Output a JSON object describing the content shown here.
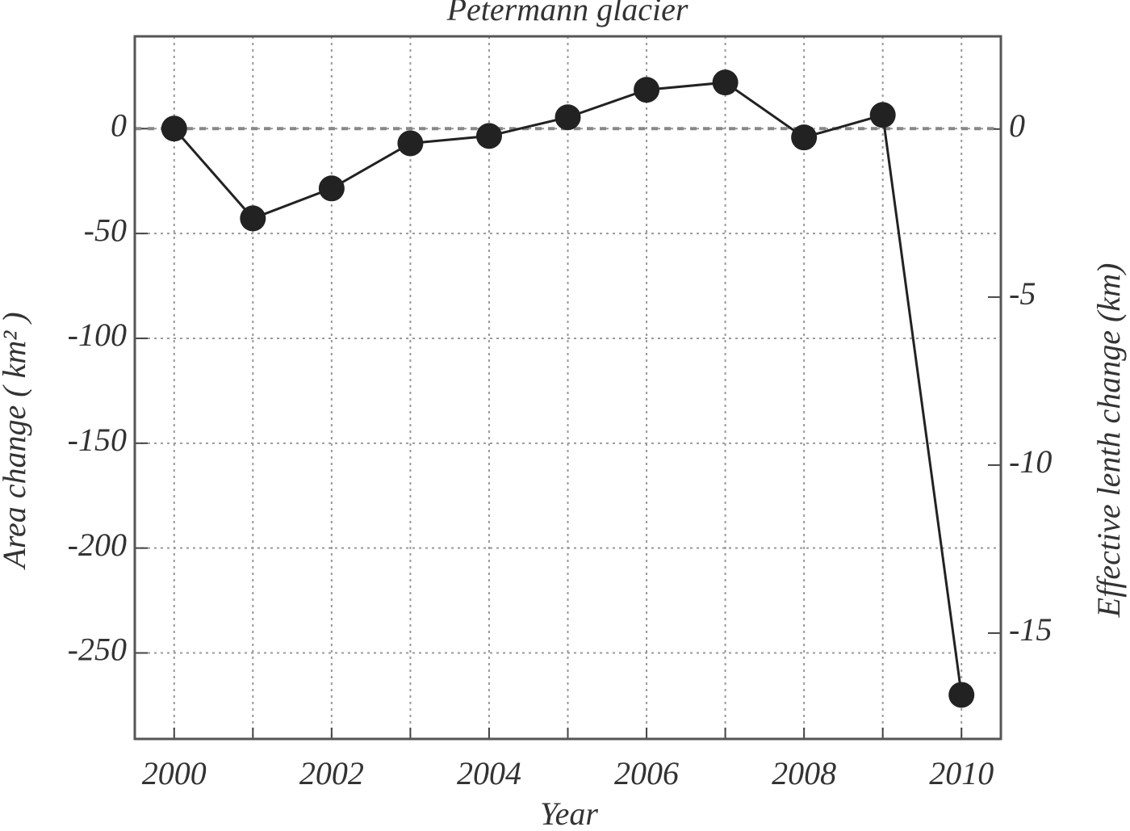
{
  "chart_data": {
    "type": "line",
    "title": "Petermann glacier",
    "x_label": "Year",
    "y_label": "Area change ( km² )",
    "y2_label": "Effective lenth change (km)",
    "x": [
      2000,
      2001,
      2002,
      2003,
      2004,
      2005,
      2006,
      2007,
      2008,
      2009,
      2010
    ],
    "series": [
      {
        "color": "#222222",
        "values": [
          0,
          -42.8,
          -28.5,
          -7,
          -3.5,
          5.4,
          18.5,
          22,
          -4.2,
          6.5,
          -270
        ]
      }
    ],
    "xlim": [
      1999.5,
      2010.5
    ],
    "xticks": [
      2000,
      2002,
      2004,
      2006,
      2008,
      2010
    ],
    "minor_xticks": [
      2001,
      2003,
      2005,
      2007,
      2009
    ],
    "ylim": [
      -291,
      44
    ],
    "yticks": [
      0,
      -50,
      -100,
      -150,
      -200,
      -250
    ],
    "y2lim": [
      -18.15,
      2.76
    ],
    "y2ticks": [
      0,
      -5,
      -10,
      -15
    ],
    "reference_line": 0,
    "grid": true
  }
}
